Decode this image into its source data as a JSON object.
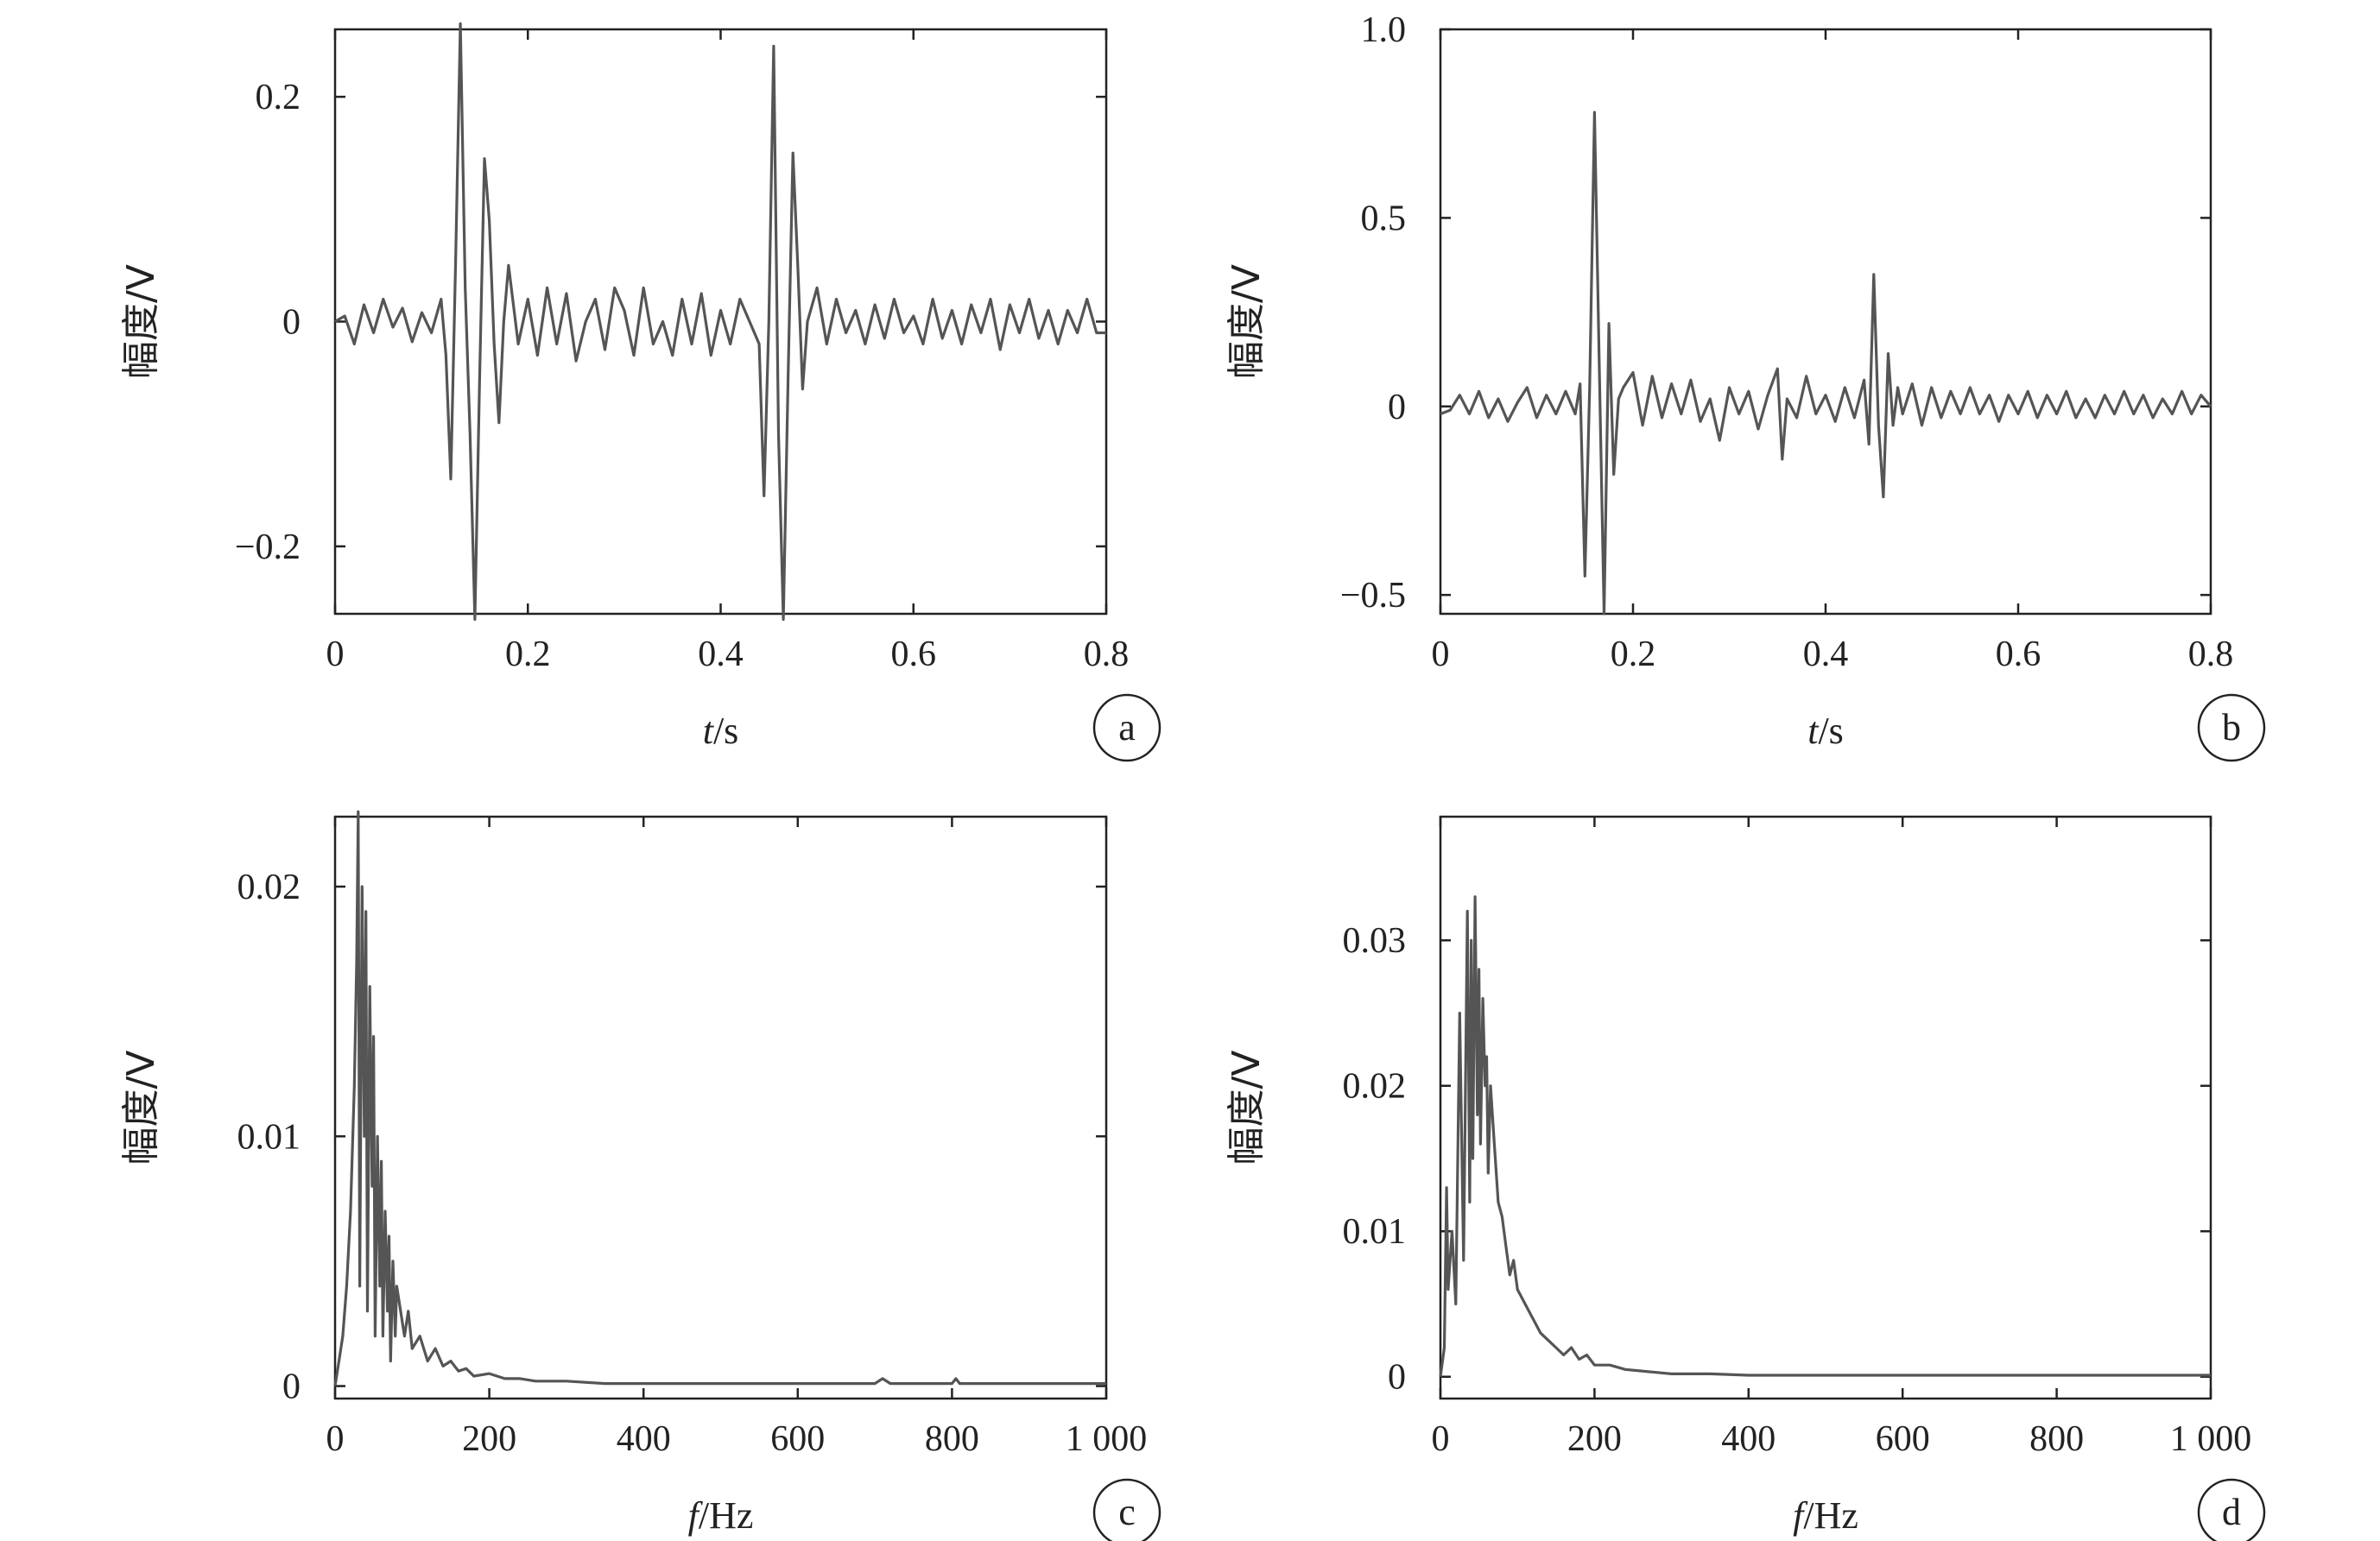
{
  "chart_data": [
    {
      "type": "line",
      "panel": "a",
      "xlabel_var": "t",
      "xlabel_unit": "/s",
      "ylabel": "幅度/V",
      "xlim": [
        0,
        0.8
      ],
      "ylim": [
        -0.26,
        0.26
      ],
      "xticks": [
        0,
        0.2,
        0.4,
        0.6,
        0.8
      ],
      "xtick_labels": [
        "0",
        "0.2",
        "0.4",
        "0.6",
        "0.8"
      ],
      "yticks": [
        -0.2,
        0,
        0.2
      ],
      "ytick_labels": [
        "−0.2",
        "0",
        "0.2"
      ],
      "series": [
        {
          "color": "#555555",
          "x": [
            0,
            0.01,
            0.02,
            0.03,
            0.04,
            0.05,
            0.06,
            0.07,
            0.08,
            0.09,
            0.1,
            0.11,
            0.115,
            0.12,
            0.125,
            0.13,
            0.135,
            0.14,
            0.145,
            0.15,
            0.155,
            0.16,
            0.165,
            0.17,
            0.175,
            0.18,
            0.19,
            0.2,
            0.21,
            0.22,
            0.23,
            0.24,
            0.25,
            0.26,
            0.27,
            0.28,
            0.29,
            0.3,
            0.31,
            0.32,
            0.33,
            0.34,
            0.35,
            0.36,
            0.37,
            0.38,
            0.39,
            0.4,
            0.41,
            0.42,
            0.43,
            0.44,
            0.445,
            0.45,
            0.455,
            0.46,
            0.465,
            0.47,
            0.475,
            0.48,
            0.485,
            0.49,
            0.5,
            0.51,
            0.52,
            0.53,
            0.54,
            0.55,
            0.56,
            0.57,
            0.58,
            0.59,
            0.6,
            0.61,
            0.62,
            0.63,
            0.64,
            0.65,
            0.66,
            0.67,
            0.68,
            0.69,
            0.7,
            0.71,
            0.72,
            0.73,
            0.74,
            0.75,
            0.76,
            0.77,
            0.78,
            0.79,
            0.8
          ],
          "values": [
            0,
            0.005,
            -0.02,
            0.015,
            -0.01,
            0.02,
            -0.005,
            0.012,
            -0.018,
            0.008,
            -0.01,
            0.02,
            -0.03,
            -0.14,
            0.05,
            0.265,
            0.03,
            -0.1,
            -0.265,
            -0.05,
            0.145,
            0.09,
            -0.02,
            -0.09,
            0.0,
            0.05,
            -0.02,
            0.02,
            -0.03,
            0.03,
            -0.02,
            0.025,
            -0.035,
            0.0,
            0.02,
            -0.025,
            0.03,
            0.01,
            -0.03,
            0.03,
            -0.02,
            0.0,
            -0.03,
            0.02,
            -0.02,
            0.025,
            -0.03,
            0.01,
            -0.02,
            0.02,
            0.0,
            -0.02,
            -0.155,
            0.0,
            0.245,
            -0.1,
            -0.265,
            -0.05,
            0.15,
            0.05,
            -0.06,
            0.0,
            0.03,
            -0.02,
            0.02,
            -0.01,
            0.01,
            -0.02,
            0.015,
            -0.015,
            0.02,
            -0.01,
            0.005,
            -0.02,
            0.02,
            -0.015,
            0.01,
            -0.02,
            0.015,
            -0.01,
            0.02,
            -0.025,
            0.015,
            -0.01,
            0.02,
            -0.015,
            0.01,
            -0.02,
            0.01,
            -0.01,
            0.02,
            -0.01,
            -0.01
          ]
        }
      ]
    },
    {
      "type": "line",
      "panel": "b",
      "xlabel_var": "t",
      "xlabel_unit": "/s",
      "ylabel": "幅度/V",
      "xlim": [
        0,
        0.8
      ],
      "ylim": [
        -0.55,
        1.0
      ],
      "xticks": [
        0,
        0.2,
        0.4,
        0.6,
        0.8
      ],
      "xtick_labels": [
        "0",
        "0.2",
        "0.4",
        "0.6",
        "0.8"
      ],
      "yticks": [
        -0.5,
        0,
        0.5,
        1.0
      ],
      "ytick_labels": [
        "−0.5",
        "0",
        "0.5",
        "1.0"
      ],
      "series": [
        {
          "color": "#555555",
          "x": [
            0,
            0.01,
            0.02,
            0.03,
            0.04,
            0.05,
            0.06,
            0.07,
            0.08,
            0.09,
            0.1,
            0.11,
            0.12,
            0.13,
            0.14,
            0.145,
            0.15,
            0.155,
            0.16,
            0.165,
            0.17,
            0.175,
            0.18,
            0.185,
            0.19,
            0.2,
            0.21,
            0.22,
            0.23,
            0.24,
            0.25,
            0.26,
            0.27,
            0.28,
            0.29,
            0.3,
            0.31,
            0.32,
            0.33,
            0.34,
            0.35,
            0.355,
            0.36,
            0.37,
            0.38,
            0.39,
            0.4,
            0.41,
            0.42,
            0.43,
            0.44,
            0.445,
            0.45,
            0.455,
            0.46,
            0.465,
            0.47,
            0.475,
            0.48,
            0.49,
            0.5,
            0.51,
            0.52,
            0.53,
            0.54,
            0.55,
            0.56,
            0.57,
            0.58,
            0.59,
            0.6,
            0.61,
            0.62,
            0.63,
            0.64,
            0.65,
            0.66,
            0.67,
            0.68,
            0.69,
            0.7,
            0.71,
            0.72,
            0.73,
            0.74,
            0.75,
            0.76,
            0.77,
            0.78,
            0.79,
            0.8
          ],
          "values": [
            -0.02,
            -0.01,
            0.03,
            -0.02,
            0.04,
            -0.03,
            0.02,
            -0.04,
            0.01,
            0.05,
            -0.03,
            0.03,
            -0.02,
            0.04,
            -0.02,
            0.06,
            -0.45,
            0.05,
            0.78,
            0.1,
            -0.55,
            0.22,
            -0.18,
            0.02,
            0.05,
            0.09,
            -0.05,
            0.08,
            -0.03,
            0.06,
            -0.02,
            0.07,
            -0.04,
            0.02,
            -0.09,
            0.05,
            -0.02,
            0.04,
            -0.06,
            0.03,
            0.1,
            -0.14,
            0.02,
            -0.03,
            0.08,
            -0.02,
            0.03,
            -0.04,
            0.05,
            -0.03,
            0.07,
            -0.1,
            0.35,
            -0.05,
            -0.24,
            0.14,
            -0.05,
            0.05,
            -0.02,
            0.06,
            -0.05,
            0.05,
            -0.03,
            0.04,
            -0.02,
            0.05,
            -0.02,
            0.03,
            -0.04,
            0.03,
            -0.02,
            0.04,
            -0.03,
            0.03,
            -0.02,
            0.04,
            -0.03,
            0.02,
            -0.03,
            0.03,
            -0.02,
            0.04,
            -0.02,
            0.03,
            -0.03,
            0.02,
            -0.02,
            0.04,
            -0.02,
            0.03,
            0.0
          ]
        }
      ]
    },
    {
      "type": "line",
      "panel": "c",
      "xlabel_var": "f",
      "xlabel_unit": "/Hz",
      "ylabel": "幅度/V",
      "xlim": [
        0,
        1000
      ],
      "ylim": [
        -0.0005,
        0.0228
      ],
      "xticks": [
        0,
        200,
        400,
        600,
        800,
        1000
      ],
      "xtick_labels": [
        "0",
        "200",
        "400",
        "600",
        "800",
        "1 000"
      ],
      "yticks": [
        0,
        0.01,
        0.02
      ],
      "ytick_labels": [
        "0",
        "0.01",
        "0.02"
      ],
      "series": [
        {
          "color": "#555555",
          "x": [
            0,
            5,
            10,
            15,
            20,
            25,
            28,
            30,
            32,
            35,
            38,
            40,
            42,
            45,
            48,
            50,
            52,
            55,
            58,
            60,
            62,
            65,
            68,
            70,
            72,
            75,
            78,
            80,
            85,
            90,
            95,
            100,
            110,
            120,
            130,
            140,
            150,
            160,
            170,
            180,
            200,
            220,
            240,
            260,
            300,
            350,
            400,
            500,
            600,
            700,
            710,
            720,
            800,
            805,
            810,
            900,
            1000
          ],
          "values": [
            0,
            0.001,
            0.002,
            0.004,
            0.007,
            0.012,
            0.017,
            0.023,
            0.004,
            0.02,
            0.01,
            0.019,
            0.003,
            0.016,
            0.008,
            0.014,
            0.002,
            0.01,
            0.004,
            0.009,
            0.002,
            0.007,
            0.003,
            0.006,
            0.001,
            0.005,
            0.002,
            0.004,
            0.003,
            0.002,
            0.003,
            0.0015,
            0.002,
            0.001,
            0.0015,
            0.0008,
            0.001,
            0.0006,
            0.0007,
            0.0004,
            0.0005,
            0.0003,
            0.0003,
            0.0002,
            0.0002,
            0.0001,
            0.0001,
            0.0001,
            0.0001,
            0.0001,
            0.0003,
            0.0001,
            0.0001,
            0.0003,
            0.0001,
            0.0001,
            0.0001
          ]
        }
      ]
    },
    {
      "type": "line",
      "panel": "d",
      "xlabel_var": "f",
      "xlabel_unit": "/Hz",
      "ylabel": "幅度/V",
      "xlim": [
        0,
        1000
      ],
      "ylim": [
        -0.0015,
        0.0385
      ],
      "xticks": [
        0,
        200,
        400,
        600,
        800,
        1000
      ],
      "xtick_labels": [
        "0",
        "200",
        "400",
        "600",
        "800",
        "1 000"
      ],
      "yticks": [
        0,
        0.01,
        0.02,
        0.03
      ],
      "ytick_labels": [
        "0",
        "0.01",
        "0.02",
        "0.03"
      ],
      "series": [
        {
          "color": "#555555",
          "x": [
            0,
            5,
            8,
            10,
            15,
            20,
            25,
            30,
            35,
            38,
            40,
            42,
            45,
            48,
            50,
            52,
            55,
            58,
            60,
            62,
            65,
            70,
            75,
            80,
            85,
            90,
            95,
            100,
            110,
            120,
            130,
            140,
            150,
            160,
            170,
            180,
            190,
            200,
            220,
            240,
            260,
            280,
            300,
            350,
            400,
            500,
            600,
            700,
            800,
            900,
            1000
          ],
          "values": [
            0,
            0.002,
            0.013,
            0.006,
            0.01,
            0.005,
            0.025,
            0.008,
            0.032,
            0.012,
            0.03,
            0.015,
            0.033,
            0.018,
            0.028,
            0.016,
            0.026,
            0.02,
            0.022,
            0.014,
            0.02,
            0.016,
            0.012,
            0.011,
            0.009,
            0.007,
            0.008,
            0.006,
            0.005,
            0.004,
            0.003,
            0.0025,
            0.002,
            0.0015,
            0.002,
            0.0012,
            0.0015,
            0.0008,
            0.0008,
            0.0005,
            0.0004,
            0.0003,
            0.0002,
            0.0002,
            0.0001,
            0.0001,
            0.0001,
            0.0001,
            0.0001,
            0.0001,
            0.0001
          ]
        }
      ]
    }
  ]
}
